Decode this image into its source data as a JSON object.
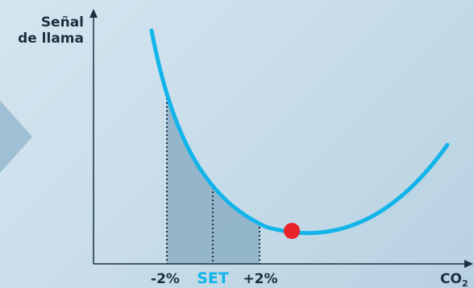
{
  "y_axis_label": [
    "Señal",
    "de llama"
  ],
  "x_axis_label": {
    "main": "CO",
    "subscript": "2"
  },
  "markers": {
    "left": "-2%",
    "set": "SET",
    "right": "+2%"
  },
  "colors": {
    "curve": "#12b4ea",
    "set_label": "#12b4ea",
    "shaded_region": "#8fb1c7",
    "optimum_point": "#e8242a",
    "axis": "#1a3040",
    "arrow_decoration": "#9fbfd4"
  },
  "icons": {
    "left_decoration": "chevron-right-icon"
  }
}
